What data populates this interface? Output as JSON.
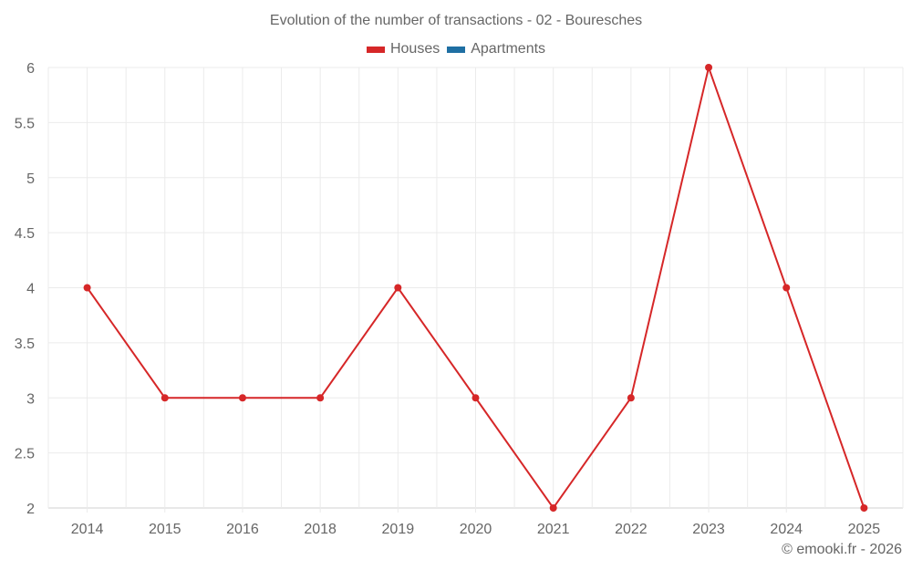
{
  "chart_data": {
    "type": "line",
    "title": "Evolution of the number of transactions - 02 - Bouresches",
    "categories": [
      "2014",
      "2015",
      "2016",
      "2018",
      "2019",
      "2020",
      "2021",
      "2022",
      "2023",
      "2024",
      "2025"
    ],
    "series": [
      {
        "name": "Houses",
        "color": "#d62728",
        "values": [
          4,
          3,
          3,
          3,
          4,
          3,
          2,
          3,
          6,
          4,
          2
        ]
      },
      {
        "name": "Apartments",
        "color": "#1f6fa3",
        "values": []
      }
    ],
    "xlabel": "",
    "ylabel": "",
    "ylim": [
      2,
      6
    ],
    "yticks": [
      "2",
      "2.5",
      "3",
      "3.5",
      "4",
      "4.5",
      "5",
      "5.5",
      "6"
    ],
    "grid": true,
    "legend_position": "top"
  },
  "title": "Evolution of the number of transactions - 02 - Bouresches",
  "legend": [
    {
      "label": "Houses",
      "color": "#d62728"
    },
    {
      "label": "Apartments",
      "color": "#1f6fa3"
    }
  ],
  "credit": "© emooki.fr - 2026"
}
